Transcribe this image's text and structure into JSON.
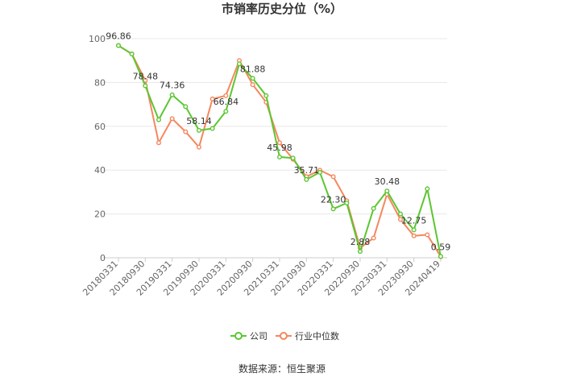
{
  "chart_data": {
    "type": "line",
    "title": "市销率历史分位（%）",
    "source": "数据来源：恒生聚源",
    "ylim": [
      0,
      100
    ],
    "yticks": [
      0,
      20,
      40,
      60,
      80,
      100
    ],
    "grid": true,
    "legend_position": "bottom-center",
    "x": [
      "20180331",
      "20180630",
      "20180930",
      "20181231",
      "20190331",
      "20190630",
      "20190930",
      "20191231",
      "20200331",
      "20200630",
      "20200930",
      "20201231",
      "20210331",
      "20210630",
      "20210930",
      "20211231",
      "20220331",
      "20220630",
      "20220930",
      "20221231",
      "20230331",
      "20230630",
      "20230930",
      "20231231",
      "20240419"
    ],
    "x_tick_labels": [
      "20180331",
      "20180930",
      "20190331",
      "20190930",
      "20200331",
      "20200930",
      "20210331",
      "20210930",
      "20220331",
      "20220930",
      "20230331",
      "20230930",
      "20240419"
    ],
    "series": [
      {
        "name": "公司",
        "color": "#5cc631",
        "values": [
          96.86,
          93.0,
          78.48,
          63.0,
          74.36,
          69.0,
          58.14,
          59.0,
          66.84,
          88.5,
          81.88,
          74.0,
          45.98,
          45.5,
          35.71,
          39.0,
          22.3,
          25.0,
          2.88,
          22.5,
          30.48,
          20.0,
          12.75,
          31.5,
          0.59
        ],
        "labels": [
          "96.86",
          "",
          "78.48",
          "",
          "74.36",
          "",
          "58.14",
          "",
          "66.84",
          "",
          "81.88",
          "",
          "45.98",
          "",
          "35.71",
          "",
          "22.30",
          "",
          "2.88",
          "",
          "30.48",
          "",
          "12.75",
          "",
          "0.59"
        ]
      },
      {
        "name": "行业中位数",
        "color": "#f5875d",
        "values": [
          96.86,
          93.0,
          81.0,
          52.5,
          63.5,
          57.5,
          50.5,
          72.5,
          74.0,
          90.0,
          79.0,
          71.0,
          52.5,
          45.0,
          37.0,
          40.0,
          37.0,
          26.0,
          4.5,
          9.0,
          29.0,
          17.5,
          10.0,
          10.5,
          0.5
        ]
      }
    ]
  }
}
